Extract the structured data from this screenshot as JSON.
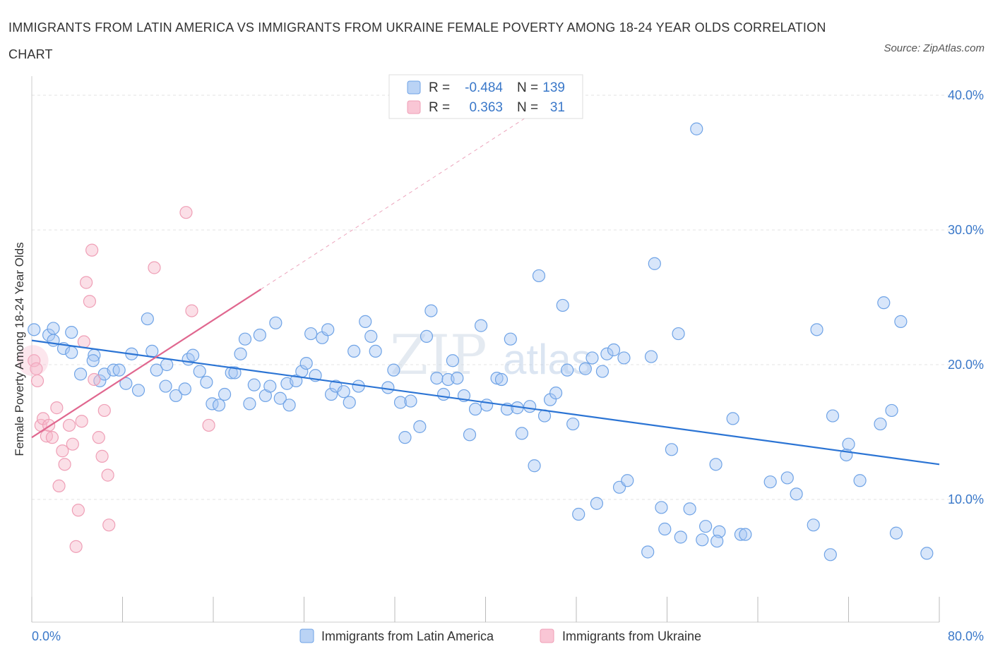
{
  "title": "IMMIGRANTS FROM LATIN AMERICA VS IMMIGRANTS FROM UKRAINE FEMALE POVERTY AMONG 18-24 YEAR OLDS CORRELATION CHART",
  "source": "Source: ZipAtlas.com",
  "watermark": {
    "zip": "ZIP",
    "atlas": "atlas"
  },
  "legend": {
    "r_label": "R =",
    "n_label": "N =",
    "rows": [
      {
        "r": "-0.484",
        "n": "139",
        "color": "#a9c8f3"
      },
      {
        "r": "0.363",
        "n": "31",
        "color": "#f7b8ca"
      }
    ]
  },
  "bottom_legend": [
    "Immigrants from Latin America",
    "Immigrants from Ukraine"
  ],
  "chart_data": {
    "type": "scatter",
    "ylabel": "Female Poverty Among 18-24 Year Olds",
    "xlabel": "",
    "xlim": [
      0,
      80
    ],
    "ylim": [
      0,
      42
    ],
    "x_tick_labels": [
      {
        "value": 0,
        "label": "0.0%"
      },
      {
        "value": 80,
        "label": "80.0%"
      }
    ],
    "y_tick_labels": [
      {
        "value": 10,
        "label": "10.0%"
      },
      {
        "value": 20,
        "label": "20.0%"
      },
      {
        "value": 30,
        "label": "30.0%"
      },
      {
        "value": 40,
        "label": "40.0%"
      }
    ],
    "grid": true,
    "series": [
      {
        "name": "Immigrants from Latin America",
        "color": "#6fa3e6",
        "fill": "#a9c8f3",
        "line_color": "#2b74d4",
        "trend": {
          "x0": 0,
          "y0": 21.8,
          "x1": 80,
          "y1": 12.6
        },
        "points": [
          [
            0.2,
            22.6
          ],
          [
            1.5,
            22.2
          ],
          [
            1.9,
            22.7
          ],
          [
            3.5,
            22.4
          ],
          [
            1.9,
            21.8
          ],
          [
            2.8,
            21.2
          ],
          [
            3.5,
            20.9
          ],
          [
            5.5,
            20.7
          ],
          [
            5.4,
            20.3
          ],
          [
            4.3,
            19.3
          ],
          [
            6.0,
            18.8
          ],
          [
            6.4,
            19.3
          ],
          [
            7.2,
            19.6
          ],
          [
            7.7,
            19.6
          ],
          [
            8.3,
            18.6
          ],
          [
            8.8,
            20.8
          ],
          [
            9.4,
            18.1
          ],
          [
            10.2,
            23.4
          ],
          [
            10.6,
            21.0
          ],
          [
            11.0,
            19.6
          ],
          [
            11.8,
            18.4
          ],
          [
            11.9,
            20.0
          ],
          [
            12.7,
            17.7
          ],
          [
            13.5,
            18.2
          ],
          [
            13.8,
            20.4
          ],
          [
            14.2,
            20.7
          ],
          [
            14.8,
            19.5
          ],
          [
            15.4,
            18.7
          ],
          [
            15.9,
            17.1
          ],
          [
            16.5,
            17.0
          ],
          [
            17.0,
            17.8
          ],
          [
            17.6,
            19.4
          ],
          [
            17.9,
            19.4
          ],
          [
            18.4,
            20.8
          ],
          [
            18.8,
            21.9
          ],
          [
            19.2,
            17.1
          ],
          [
            19.6,
            18.5
          ],
          [
            20.1,
            22.2
          ],
          [
            20.6,
            17.7
          ],
          [
            21.0,
            18.4
          ],
          [
            21.5,
            23.1
          ],
          [
            21.9,
            17.5
          ],
          [
            22.5,
            18.6
          ],
          [
            22.7,
            17.0
          ],
          [
            23.3,
            18.8
          ],
          [
            23.8,
            19.5
          ],
          [
            24.2,
            20.1
          ],
          [
            24.6,
            22.3
          ],
          [
            25.0,
            19.2
          ],
          [
            25.6,
            22.0
          ],
          [
            26.1,
            22.6
          ],
          [
            26.4,
            17.8
          ],
          [
            26.8,
            18.4
          ],
          [
            27.5,
            18.0
          ],
          [
            28.0,
            17.2
          ],
          [
            28.4,
            21.0
          ],
          [
            28.8,
            18.4
          ],
          [
            29.4,
            23.2
          ],
          [
            29.9,
            22.1
          ],
          [
            30.3,
            21.0
          ],
          [
            31.4,
            18.3
          ],
          [
            31.9,
            19.6
          ],
          [
            32.5,
            17.2
          ],
          [
            32.9,
            14.6
          ],
          [
            33.4,
            17.3
          ],
          [
            34.2,
            15.4
          ],
          [
            34.8,
            22.1
          ],
          [
            35.2,
            24.0
          ],
          [
            35.7,
            19.0
          ],
          [
            36.3,
            17.8
          ],
          [
            36.7,
            18.9
          ],
          [
            37.1,
            20.3
          ],
          [
            37.5,
            19.0
          ],
          [
            38.1,
            17.7
          ],
          [
            38.6,
            14.8
          ],
          [
            39.1,
            16.7
          ],
          [
            39.6,
            22.9
          ],
          [
            40.1,
            17.0
          ],
          [
            41.0,
            19.0
          ],
          [
            41.4,
            18.9
          ],
          [
            41.9,
            16.7
          ],
          [
            42.2,
            21.9
          ],
          [
            42.8,
            16.8
          ],
          [
            43.2,
            14.9
          ],
          [
            43.9,
            16.9
          ],
          [
            44.3,
            12.5
          ],
          [
            44.7,
            26.6
          ],
          [
            45.2,
            16.2
          ],
          [
            45.7,
            17.4
          ],
          [
            46.2,
            17.9
          ],
          [
            46.8,
            24.4
          ],
          [
            47.2,
            19.6
          ],
          [
            47.7,
            15.6
          ],
          [
            48.2,
            8.9
          ],
          [
            48.8,
            19.7
          ],
          [
            49.4,
            20.5
          ],
          [
            49.8,
            9.7
          ],
          [
            50.3,
            19.5
          ],
          [
            50.7,
            20.8
          ],
          [
            51.3,
            21.1
          ],
          [
            51.8,
            10.9
          ],
          [
            52.2,
            20.5
          ],
          [
            52.5,
            11.4
          ],
          [
            54.3,
            6.1
          ],
          [
            54.6,
            20.6
          ],
          [
            54.9,
            27.5
          ],
          [
            55.5,
            9.4
          ],
          [
            55.8,
            7.8
          ],
          [
            56.4,
            13.7
          ],
          [
            57.2,
            7.2
          ],
          [
            57.0,
            22.3
          ],
          [
            58.0,
            9.3
          ],
          [
            59.1,
            7.0
          ],
          [
            59.4,
            8.0
          ],
          [
            60.3,
            12.6
          ],
          [
            60.6,
            7.6
          ],
          [
            60.4,
            6.9
          ],
          [
            61.8,
            16.0
          ],
          [
            62.5,
            7.4
          ],
          [
            62.9,
            7.4
          ],
          [
            65.1,
            11.3
          ],
          [
            66.6,
            11.6
          ],
          [
            67.4,
            10.4
          ],
          [
            68.9,
            8.1
          ],
          [
            69.2,
            22.6
          ],
          [
            70.6,
            16.2
          ],
          [
            70.4,
            5.9
          ],
          [
            71.8,
            13.3
          ],
          [
            72.0,
            14.1
          ],
          [
            73.0,
            11.4
          ],
          [
            74.8,
            15.6
          ],
          [
            75.1,
            24.6
          ],
          [
            75.8,
            16.6
          ],
          [
            76.2,
            7.5
          ],
          [
            76.6,
            23.2
          ],
          [
            78.9,
            6.0
          ],
          [
            58.6,
            37.5
          ]
        ]
      },
      {
        "name": "Immigrants from Ukraine",
        "color": "#ef9fb6",
        "fill": "#f7b8ca",
        "line_color": "#e0678f",
        "trend": {
          "x0": 0,
          "y0": 14.6,
          "x1": 20.2,
          "y1": 25.6
        },
        "trend_ext": {
          "x0": 20.2,
          "y0": 25.6,
          "x1": 45.5,
          "y1": 39.4
        },
        "points": [
          [
            0.2,
            20.3
          ],
          [
            0.4,
            19.7
          ],
          [
            0.5,
            18.8
          ],
          [
            0.8,
            15.5
          ],
          [
            1.0,
            16.0
          ],
          [
            1.3,
            14.7
          ],
          [
            1.5,
            15.5
          ],
          [
            1.8,
            14.6
          ],
          [
            2.2,
            16.8
          ],
          [
            2.4,
            11.0
          ],
          [
            2.7,
            13.6
          ],
          [
            2.9,
            12.6
          ],
          [
            3.3,
            15.5
          ],
          [
            3.6,
            14.1
          ],
          [
            3.9,
            6.5
          ],
          [
            4.1,
            9.2
          ],
          [
            4.4,
            15.8
          ],
          [
            4.6,
            21.7
          ],
          [
            4.8,
            26.1
          ],
          [
            5.1,
            24.7
          ],
          [
            5.3,
            28.5
          ],
          [
            5.5,
            18.9
          ],
          [
            5.9,
            14.6
          ],
          [
            6.2,
            13.2
          ],
          [
            6.4,
            16.6
          ],
          [
            6.7,
            11.8
          ],
          [
            6.8,
            8.1
          ],
          [
            10.8,
            27.2
          ],
          [
            13.6,
            31.3
          ],
          [
            14.1,
            24.0
          ],
          [
            15.6,
            15.5
          ]
        ]
      }
    ]
  }
}
